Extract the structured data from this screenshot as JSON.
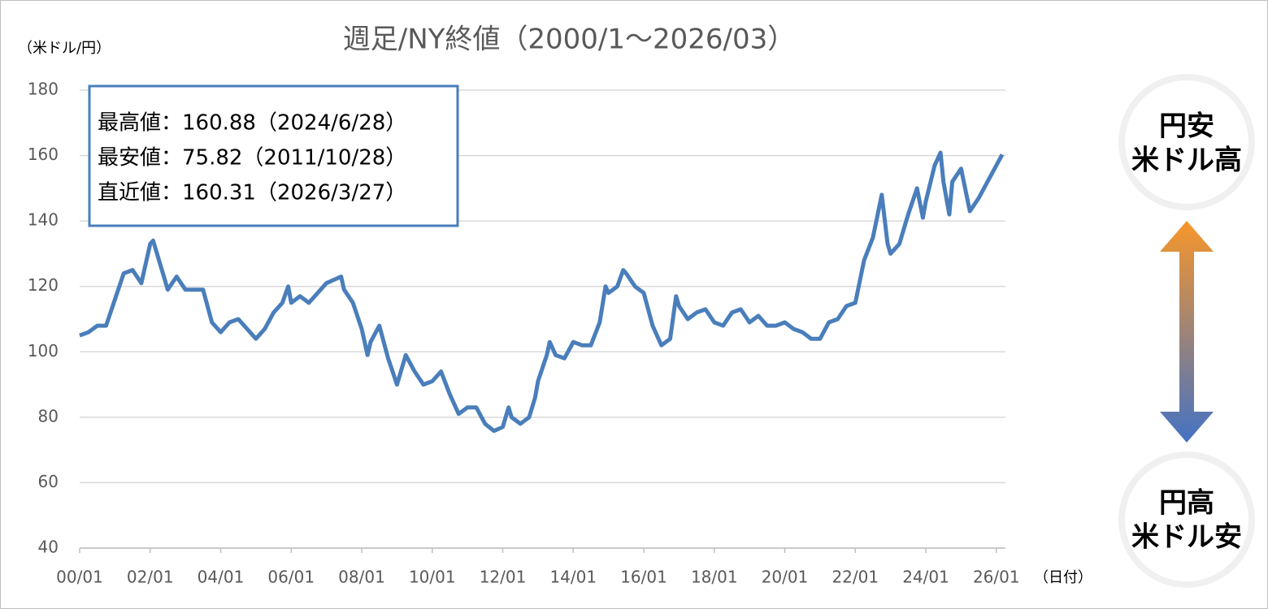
{
  "chart_data": {
    "type": "line",
    "title": "週足/NY終値（2000/1～2026/03）",
    "y_label": "（米ドル/円）",
    "x_label": "（日付）",
    "annotations": [
      "最高値：160.88（2024/6/28）",
      "最安値：75.82（2011/10/28）",
      "直近値：160.31（2026/3/27）"
    ],
    "side_labels": {
      "top": [
        "円安",
        "米ドル高"
      ],
      "bottom": [
        "円高",
        "米ドル安"
      ]
    },
    "color": "#4a7ebb",
    "grid": true,
    "x": [
      "00/01",
      "00/04",
      "00/07",
      "00/10",
      "01/01",
      "01/04",
      "01/07",
      "01/10",
      "02/01",
      "02/02",
      "02/04",
      "02/07",
      "02/10",
      "03/01",
      "03/04",
      "03/07",
      "03/10",
      "04/01",
      "04/04",
      "04/07",
      "04/10",
      "05/01",
      "05/04",
      "05/07",
      "05/10",
      "05/12",
      "06/01",
      "06/04",
      "06/07",
      "06/10",
      "07/01",
      "07/06",
      "07/07",
      "07/10",
      "08/01",
      "08/03",
      "08/04",
      "08/07",
      "08/10",
      "09/01",
      "09/04",
      "09/07",
      "09/10",
      "10/01",
      "10/04",
      "10/07",
      "10/10",
      "11/01",
      "11/04",
      "11/07",
      "11/10",
      "12/01",
      "12/03",
      "12/04",
      "12/07",
      "12/10",
      "12/12",
      "13/01",
      "13/04",
      "13/05",
      "13/07",
      "13/10",
      "14/01",
      "14/04",
      "14/07",
      "14/10",
      "14/12",
      "15/01",
      "15/04",
      "15/06",
      "15/07",
      "15/10",
      "16/01",
      "16/04",
      "16/07",
      "16/10",
      "16/12",
      "17/01",
      "17/04",
      "17/07",
      "17/10",
      "18/01",
      "18/04",
      "18/07",
      "18/10",
      "19/01",
      "19/04",
      "19/07",
      "19/10",
      "20/01",
      "20/04",
      "20/07",
      "20/10",
      "21/01",
      "21/04",
      "21/07",
      "21/10",
      "22/01",
      "22/04",
      "22/07",
      "22/10",
      "22/12",
      "23/01",
      "23/04",
      "23/07",
      "23/10",
      "23/12",
      "24/01",
      "24/04",
      "24/06",
      "24/07",
      "24/09",
      "24/10",
      "25/01",
      "25/04",
      "25/07",
      "25/10",
      "26/01",
      "26/03"
    ],
    "values": [
      105,
      106,
      108,
      108,
      116,
      124,
      125,
      121,
      133,
      134,
      128,
      119,
      123,
      119,
      119,
      119,
      109,
      106,
      109,
      110,
      107,
      104,
      107,
      112,
      115,
      120,
      115,
      117,
      115,
      118,
      121,
      123,
      119,
      115,
      107,
      99,
      103,
      108,
      98,
      90,
      99,
      94,
      90,
      91,
      94,
      87,
      81,
      83,
      83,
      78,
      75.82,
      77,
      83,
      80,
      78,
      80,
      86,
      91,
      99,
      103,
      99,
      98,
      103,
      102,
      102,
      109,
      120,
      118,
      120,
      125,
      124,
      120,
      118,
      108,
      102,
      104,
      117,
      114,
      110,
      112,
      113,
      109,
      108,
      112,
      113,
      109,
      111,
      108,
      108,
      109,
      107,
      106,
      104,
      104,
      109,
      110,
      114,
      115,
      128,
      135,
      148,
      133,
      130,
      133,
      142,
      150,
      141,
      146,
      157,
      160.88,
      152,
      142,
      152,
      156,
      143,
      147,
      152,
      157,
      160.31
    ],
    "xlim": [
      "00/01",
      "26/03"
    ],
    "xticks": [
      "00/01",
      "02/01",
      "04/01",
      "06/01",
      "08/01",
      "10/01",
      "12/01",
      "14/01",
      "16/01",
      "18/01",
      "20/01",
      "22/01",
      "24/01",
      "26/01"
    ],
    "ylim": [
      40,
      180
    ],
    "yticks": [
      40,
      60,
      80,
      100,
      120,
      140,
      160,
      180
    ]
  }
}
